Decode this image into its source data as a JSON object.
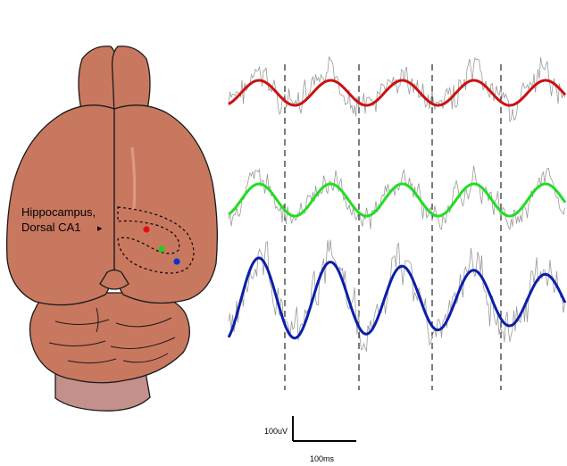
{
  "brain": {
    "label_line1": "Hippocampus,",
    "label_line2": "Dorsal CA1",
    "arrow_glyph": "▸",
    "electrodes": [
      {
        "color": "#e01010"
      },
      {
        "color": "#22cc22"
      },
      {
        "color": "#1030d0"
      }
    ],
    "tissue_color": "#c97860",
    "stem_color": "#c4908c"
  },
  "traces": {
    "raw_color": "#9a9a9a",
    "series": [
      {
        "color": "#cc1111",
        "cycles": 4.7
      },
      {
        "color": "#22dd22",
        "cycles": 4.7
      },
      {
        "color": "#0c1eaa",
        "cycles": 4.7
      }
    ],
    "marker_count": 4
  },
  "scale_bar": {
    "vertical_label": "100uV",
    "horizontal_label": "100ms"
  }
}
